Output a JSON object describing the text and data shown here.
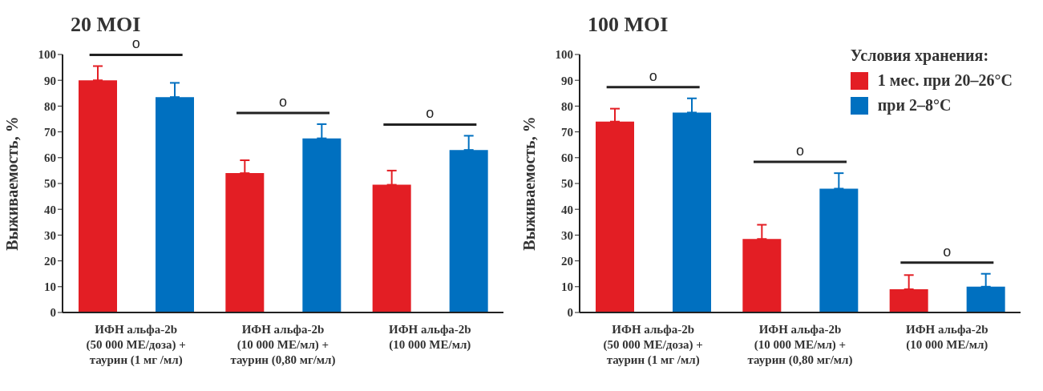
{
  "chart_data": [
    {
      "type": "bar",
      "title": "20 MOI",
      "ylabel": "Выживаемость, %",
      "categories": [
        "ИФН альфа-2b\n(50 000 МЕ/доза) +\nтаурин (1 мг /мл)",
        "ИФН альфа-2b\n(10 000 МЕ/мл) +\nтаурин (0,80 мг/мл)",
        "ИФН альфа-2b\n(10 000 МЕ/мл)"
      ],
      "series": [
        {
          "color": "#e31e24",
          "values": [
            90,
            54,
            49.5
          ],
          "errors": [
            [
              90,
              95.5
            ],
            [
              54,
              59
            ],
            [
              49.5,
              55
            ]
          ]
        },
        {
          "color": "#0070c0",
          "values": [
            83.5,
            67.5,
            63
          ],
          "errors": [
            [
              83.5,
              89
            ],
            [
              67.5,
              73
            ],
            [
              63,
              68.5
            ]
          ]
        }
      ],
      "ylim": [
        0,
        100
      ],
      "yticks": [
        0,
        10,
        20,
        30,
        40,
        50,
        60,
        70,
        80,
        90,
        100
      ],
      "grid": false,
      "legend": false,
      "annotations": [
        "o",
        "o",
        "o"
      ]
    },
    {
      "type": "bar",
      "title": "100 MOI",
      "ylabel": "Выживаемость, %",
      "legend_title": "Условия хранения:",
      "categories": [
        "ИФН альфа-2b\n(50 000 МЕ/доза) +\nтаурин (1 мг /мл)",
        "ИФН альфа-2b\n(10 000 МЕ/мл) +\nтаурин (0,80 мг/мл)",
        "ИФН альфа-2b\n(10 000 МЕ/мл)"
      ],
      "series": [
        {
          "name": "1 мес. при 20–26°C",
          "color": "#e31e24",
          "values": [
            74,
            28.5,
            9
          ],
          "errors": [
            [
              74,
              79
            ],
            [
              28.5,
              34
            ],
            [
              9,
              14.5
            ]
          ]
        },
        {
          "name": "при 2–8°C",
          "color": "#0070c0",
          "values": [
            77.5,
            48,
            10
          ],
          "errors": [
            [
              77.5,
              83
            ],
            [
              48,
              54
            ],
            [
              10,
              15
            ]
          ]
        }
      ],
      "ylim": [
        0,
        100
      ],
      "yticks": [
        0,
        10,
        20,
        30,
        40,
        50,
        60,
        70,
        80,
        90,
        100
      ],
      "grid": false,
      "legend": "top right",
      "annotations": [
        "o",
        "o",
        "o"
      ]
    }
  ]
}
